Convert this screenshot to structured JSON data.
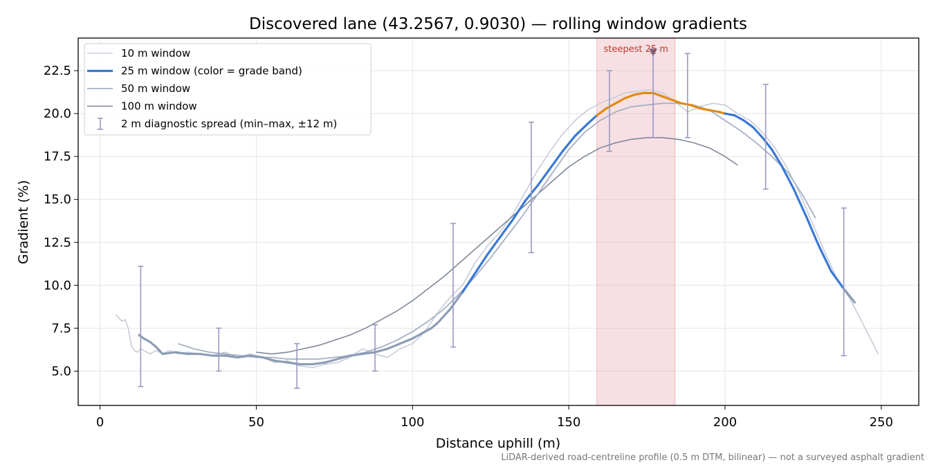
{
  "chart_data": {
    "type": "line",
    "title": "Discovered lane (43.2567, 0.9030) — rolling window gradients",
    "xlabel": "Distance uphill (m)",
    "ylabel": "Gradient (%)",
    "xlim": [
      -7,
      262
    ],
    "ylim": [
      3,
      24.4
    ],
    "xticks": [
      0,
      50,
      100,
      150,
      200,
      250
    ],
    "yticks": [
      5.0,
      7.5,
      10.0,
      12.5,
      15.0,
      17.5,
      20.0,
      22.5
    ],
    "grid": true,
    "legend_position": "top-left",
    "footnote": "LiDAR-derived road-centreline profile (0.5 m DTM, bilinear) — not a surveyed asphalt gradient",
    "steepest": {
      "label": "steepest 25 m",
      "x_range": [
        159,
        184
      ],
      "marker_x": 177,
      "band_color": "#e8a6ae"
    },
    "colors": {
      "w10": "#c6ccd8",
      "w25_low": "#8c9cb4",
      "w25_mid": "#3a78d4",
      "w25_high": "#e08a10",
      "w50": "#a4b0c4",
      "w100": "#7e8698",
      "errorbar": "#9a98c0",
      "annotation": "#c0392b"
    },
    "series": [
      {
        "name": "10 m window",
        "x": [
          5,
          7,
          8,
          9,
          10,
          11,
          12,
          13,
          14,
          16,
          18,
          20,
          22,
          25,
          28,
          32,
          36,
          40,
          44,
          48,
          52,
          56,
          60,
          64,
          68,
          72,
          76,
          80,
          84,
          88,
          92,
          96,
          100,
          104,
          108,
          112,
          116,
          120,
          124,
          128,
          132,
          136,
          140,
          144,
          148,
          152,
          156,
          160,
          164,
          168,
          172,
          176,
          180,
          184,
          188,
          192,
          196,
          200,
          204,
          208,
          212,
          216,
          220,
          224,
          228,
          232,
          236,
          240,
          244,
          249
        ],
        "y": [
          8.3,
          7.9,
          8.0,
          7.5,
          6.5,
          6.2,
          6.1,
          6.3,
          6.2,
          6.0,
          6.2,
          6.0,
          6.2,
          6.0,
          6.1,
          6.0,
          5.9,
          6.1,
          5.8,
          6.0,
          5.8,
          5.5,
          5.6,
          5.3,
          5.2,
          5.4,
          5.5,
          5.8,
          6.3,
          6.0,
          5.8,
          6.3,
          6.6,
          7.3,
          8.4,
          9.3,
          10.0,
          11.3,
          12.3,
          13.1,
          14.1,
          15.4,
          16.7,
          17.8,
          18.8,
          19.6,
          20.2,
          20.6,
          20.9,
          21.2,
          21.3,
          21.4,
          21.2,
          20.7,
          20.1,
          20.4,
          20.6,
          20.5,
          20.0,
          19.6,
          18.9,
          18.0,
          16.8,
          15.3,
          13.6,
          11.9,
          10.3,
          9.2,
          7.8,
          6.0
        ]
      },
      {
        "name": "25 m window (color = grade band)",
        "x": [
          12.5,
          14,
          16,
          18,
          20,
          24,
          28,
          32,
          36,
          40,
          44,
          48,
          52,
          56,
          60,
          64,
          68,
          72,
          76,
          80,
          84,
          88,
          92,
          96,
          100,
          104,
          106,
          108,
          112,
          116,
          120,
          124,
          128,
          132,
          136,
          140,
          144,
          148,
          152,
          156,
          159,
          162,
          165,
          168,
          171,
          174,
          177,
          180,
          183,
          186,
          189,
          192,
          195,
          198,
          200,
          203,
          206,
          209,
          212,
          215,
          218,
          222,
          226,
          230,
          234,
          238,
          241.5
        ],
        "y": [
          7.1,
          6.9,
          6.7,
          6.4,
          6.0,
          6.1,
          6.0,
          6.0,
          5.9,
          5.9,
          5.8,
          5.9,
          5.8,
          5.6,
          5.5,
          5.4,
          5.4,
          5.5,
          5.7,
          5.9,
          6.0,
          6.1,
          6.3,
          6.6,
          6.9,
          7.3,
          7.5,
          7.8,
          8.6,
          9.6,
          10.7,
          11.8,
          12.8,
          13.8,
          14.9,
          15.8,
          16.8,
          17.8,
          18.7,
          19.4,
          19.9,
          20.3,
          20.6,
          20.9,
          21.1,
          21.2,
          21.2,
          21.0,
          20.8,
          20.6,
          20.5,
          20.3,
          20.2,
          20.1,
          20.0,
          19.9,
          19.6,
          19.2,
          18.6,
          17.9,
          17.0,
          15.6,
          14.0,
          12.3,
          10.8,
          9.8,
          9.0
        ]
      },
      {
        "name": "50 m window",
        "x": [
          25,
          30,
          35,
          40,
          45,
          50,
          55,
          60,
          65,
          70,
          75,
          80,
          85,
          90,
          95,
          100,
          105,
          110,
          115,
          120,
          125,
          130,
          135,
          140,
          145,
          150,
          155,
          160,
          165,
          170,
          175,
          180,
          185,
          190,
          195,
          200,
          205,
          210,
          215,
          220,
          225,
          229
        ],
        "y": [
          6.6,
          6.3,
          6.1,
          6.0,
          5.9,
          5.8,
          5.8,
          5.7,
          5.7,
          5.7,
          5.8,
          5.9,
          6.1,
          6.4,
          6.8,
          7.3,
          7.9,
          8.6,
          9.5,
          10.5,
          11.6,
          12.8,
          14.0,
          15.3,
          16.6,
          17.9,
          18.9,
          19.6,
          20.1,
          20.4,
          20.5,
          20.6,
          20.6,
          20.5,
          20.2,
          19.6,
          19.0,
          18.3,
          17.5,
          16.6,
          15.2,
          13.9
        ]
      },
      {
        "name": "100 m window",
        "x": [
          50,
          55,
          60,
          65,
          70,
          75,
          80,
          85,
          90,
          95,
          100,
          105,
          110,
          115,
          120,
          125,
          130,
          135,
          140,
          145,
          150,
          155,
          160,
          165,
          170,
          175,
          180,
          185,
          190,
          195,
          200,
          204
        ],
        "y": [
          6.1,
          6.0,
          6.1,
          6.3,
          6.5,
          6.8,
          7.1,
          7.5,
          8.0,
          8.5,
          9.1,
          9.8,
          10.5,
          11.3,
          12.1,
          12.9,
          13.7,
          14.5,
          15.3,
          16.1,
          16.9,
          17.5,
          18.0,
          18.3,
          18.5,
          18.6,
          18.6,
          18.5,
          18.3,
          18.0,
          17.5,
          17.0
        ]
      }
    ],
    "diagnostic_spread": {
      "name": "2 m diagnostic spread (min–max, ±12 m)",
      "x": [
        13,
        38,
        63,
        88,
        113,
        138,
        163,
        177,
        188,
        213,
        238
      ],
      "ymin": [
        4.1,
        5.0,
        4.0,
        5.0,
        6.4,
        11.9,
        17.8,
        18.6,
        18.6,
        15.6,
        5.9
      ],
      "ymax": [
        11.1,
        7.5,
        6.6,
        7.7,
        13.6,
        19.5,
        22.5,
        23.5,
        23.5,
        21.7,
        14.5
      ]
    }
  }
}
